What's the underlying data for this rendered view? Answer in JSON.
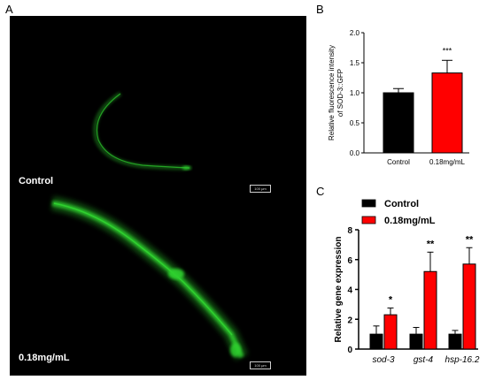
{
  "panels": {
    "a": {
      "letter": "A",
      "labels": {
        "top": "Control",
        "bottom": "0.18mg/mL"
      },
      "scale_bar": {
        "top": "100 μm",
        "bottom": "100 μm"
      },
      "colors": {
        "background": "#000000",
        "fluorescence": "#2fd02f"
      }
    },
    "b": {
      "letter": "B"
    },
    "c": {
      "letter": "C"
    }
  },
  "chart_data": [
    {
      "type": "bar",
      "panel": "B",
      "categories": [
        "Control",
        "0.18mg/mL"
      ],
      "values": [
        1.0,
        1.33
      ],
      "errors": [
        0.07,
        0.21
      ],
      "colors": [
        "#000000",
        "#ff0000"
      ],
      "significance": [
        "",
        "***"
      ],
      "ylabel_lines": [
        "Relative fluorescence intensity",
        "of SOD-3::GFP"
      ],
      "xlabel": "",
      "ylim": [
        0,
        2.0
      ],
      "yticks": [
        "0.0",
        "0.5",
        "1.0",
        "1.5",
        "2.0"
      ],
      "grid": false
    },
    {
      "type": "bar",
      "panel": "C",
      "categories": [
        "sod-3",
        "gst-4",
        "hsp-16.2"
      ],
      "series": [
        {
          "name": "Control",
          "color": "#000000",
          "values": [
            1.0,
            1.0,
            1.0
          ],
          "errors": [
            0.55,
            0.45,
            0.25
          ]
        },
        {
          "name": "0.18mg/mL",
          "color": "#ff0000",
          "values": [
            2.3,
            5.2,
            5.7
          ],
          "errors": [
            0.45,
            1.3,
            1.1
          ]
        }
      ],
      "significance": [
        "*",
        "**",
        "**"
      ],
      "ylabel": "Relative gene expression",
      "xlabel": "",
      "ylim": [
        0,
        8
      ],
      "yticks": [
        "0",
        "2",
        "4",
        "6",
        "8"
      ],
      "legend_position": "top-left",
      "grid": false
    }
  ]
}
